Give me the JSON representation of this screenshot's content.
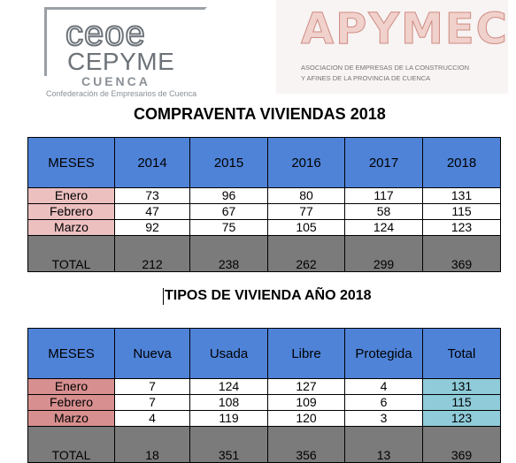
{
  "logos": {
    "ceoe": {
      "word": "ceoe",
      "cepyme": "CEPYME",
      "cuenca": "CUENCA",
      "subtitle": "Confederación de Empresarios de Cuenca"
    },
    "apymec": {
      "word": "APYMEC",
      "line1": "ASOCIACION DE EMPRESAS DE LA CONSTRUCCION",
      "line2": "Y AFINES DE LA PROVINCIA DE CUENCA"
    }
  },
  "compraventa": {
    "title": "COMPRAVENTA VIVIENDAS 2018",
    "headers": [
      "MESES",
      "2014",
      "2015",
      "2016",
      "2017",
      "2018"
    ],
    "rows": [
      {
        "mes": "Enero",
        "values": [
          "73",
          "96",
          "80",
          "117",
          "131"
        ]
      },
      {
        "mes": "Febrero",
        "values": [
          "47",
          "67",
          "77",
          "58",
          "115"
        ]
      },
      {
        "mes": "Marzo",
        "values": [
          "92",
          "75",
          "105",
          "124",
          "123"
        ]
      }
    ],
    "total": {
      "label": "TOTAL",
      "values": [
        "212",
        "238",
        "262",
        "299",
        "369"
      ]
    }
  },
  "tipos": {
    "title": "TIPOS DE VIVIENDA AÑO 2018",
    "headers": [
      "MESES",
      "Nueva",
      "Usada",
      "Libre",
      "Protegida",
      "Total"
    ],
    "rows": [
      {
        "mes": "Enero",
        "values": [
          "7",
          "124",
          "127",
          "4",
          "131"
        ]
      },
      {
        "mes": "Febrero",
        "values": [
          "7",
          "108",
          "109",
          "6",
          "115"
        ]
      },
      {
        "mes": "Marzo",
        "values": [
          "4",
          "119",
          "120",
          "3",
          "123"
        ]
      }
    ],
    "total": {
      "label": "TOTAL",
      "values": [
        "18",
        "351",
        "356",
        "13",
        "369"
      ]
    }
  },
  "colors": {
    "header": "#4f83d8",
    "month_table1": "#edc0c0",
    "month_table2": "#d88f8f",
    "total_column_table2": "#8fcbd9",
    "total_row": "#7b7b7b"
  }
}
